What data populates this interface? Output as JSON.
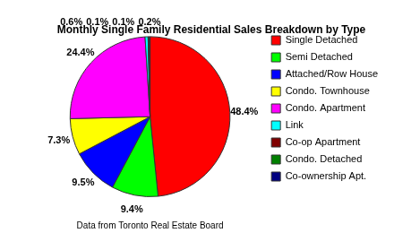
{
  "chart_data": {
    "type": "pie",
    "title": "Monthly Single Family Residential Sales Breakdown by Type",
    "categories": [
      "Single Detached",
      "Semi Detached",
      "Attached/Row House",
      "Condo. Townhouse",
      "Condo. Apartment",
      "Link",
      "Co-op Apartment",
      "Condo. Detached",
      "Co-ownership Apt."
    ],
    "values": [
      48.4,
      9.4,
      9.5,
      7.3,
      24.4,
      0.6,
      0.1,
      0.1,
      0.2
    ],
    "value_labels": [
      "48.4%",
      "9.4%",
      "9.5%",
      "7.3%",
      "24.4%",
      "0.6%",
      "0.1%",
      "0.1%",
      "0.2%"
    ],
    "colors": [
      "#ff0000",
      "#00ff00",
      "#0000ff",
      "#ffff00",
      "#ff00ff",
      "#00ffff",
      "#800000",
      "#008000",
      "#000080"
    ],
    "data_labels": true,
    "legend": "right",
    "annotations": [
      "Data from Toronto Real Estate Board"
    ]
  }
}
